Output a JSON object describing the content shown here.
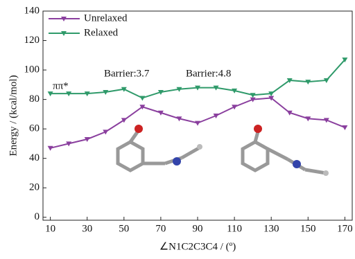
{
  "chart_data": {
    "type": "line",
    "xlabel": "∠N1C2C3C4 / (º)",
    "ylabel": "Energy / (kcal/mol)",
    "x": [
      10,
      20,
      30,
      40,
      50,
      60,
      70,
      80,
      90,
      100,
      110,
      120,
      130,
      140,
      150,
      160,
      170
    ],
    "series": [
      {
        "name": "Unrelaxed",
        "color": "#8a3f9e",
        "values": [
          47,
          50,
          53,
          58,
          66,
          75,
          71,
          67,
          64,
          69,
          75,
          80,
          81,
          71,
          67,
          66,
          61
        ]
      },
      {
        "name": "Relaxed",
        "color": "#2f9a6a",
        "values": [
          84,
          84,
          84,
          85,
          87,
          81,
          85,
          87,
          88,
          88,
          86,
          83,
          84,
          93,
          92,
          93,
          107
        ]
      }
    ],
    "annotations": [
      "ππ*",
      "Barrier:3.7",
      "Barrier:4.8"
    ],
    "xlim": [
      6,
      174
    ],
    "ylim": [
      -2,
      140
    ],
    "xticks": [
      10,
      30,
      50,
      70,
      90,
      110,
      130,
      150,
      170
    ],
    "yticks": [
      0,
      20,
      40,
      60,
      80,
      100,
      120,
      140
    ],
    "legend": "upper left"
  }
}
